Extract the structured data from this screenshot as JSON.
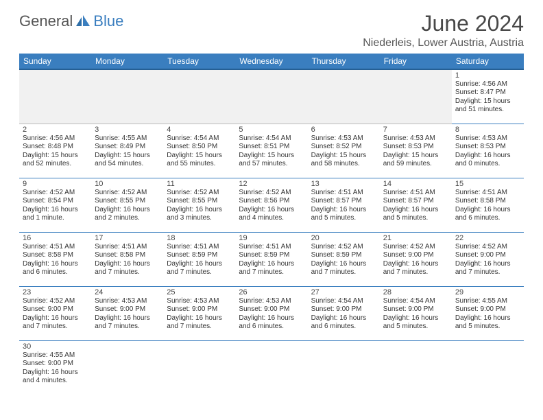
{
  "logo": {
    "general": "General",
    "blue": "Blue"
  },
  "title": "June 2024",
  "location": "Niederleis, Lower Austria, Austria",
  "days_of_week": [
    "Sunday",
    "Monday",
    "Tuesday",
    "Wednesday",
    "Thursday",
    "Friday",
    "Saturday"
  ],
  "colors": {
    "header_bg": "#3a7ebf",
    "header_border": "#255f94",
    "cell_border": "#3a7ebf",
    "blank_bg": "#f1f1f1"
  },
  "weeks": [
    [
      {
        "blank": true
      },
      {
        "blank": true
      },
      {
        "blank": true
      },
      {
        "blank": true
      },
      {
        "blank": true
      },
      {
        "blank": true
      },
      {
        "day": "1",
        "sunrise": "Sunrise: 4:56 AM",
        "sunset": "Sunset: 8:47 PM",
        "daylight1": "Daylight: 15 hours",
        "daylight2": "and 51 minutes."
      }
    ],
    [
      {
        "day": "2",
        "sunrise": "Sunrise: 4:56 AM",
        "sunset": "Sunset: 8:48 PM",
        "daylight1": "Daylight: 15 hours",
        "daylight2": "and 52 minutes."
      },
      {
        "day": "3",
        "sunrise": "Sunrise: 4:55 AM",
        "sunset": "Sunset: 8:49 PM",
        "daylight1": "Daylight: 15 hours",
        "daylight2": "and 54 minutes."
      },
      {
        "day": "4",
        "sunrise": "Sunrise: 4:54 AM",
        "sunset": "Sunset: 8:50 PM",
        "daylight1": "Daylight: 15 hours",
        "daylight2": "and 55 minutes."
      },
      {
        "day": "5",
        "sunrise": "Sunrise: 4:54 AM",
        "sunset": "Sunset: 8:51 PM",
        "daylight1": "Daylight: 15 hours",
        "daylight2": "and 57 minutes."
      },
      {
        "day": "6",
        "sunrise": "Sunrise: 4:53 AM",
        "sunset": "Sunset: 8:52 PM",
        "daylight1": "Daylight: 15 hours",
        "daylight2": "and 58 minutes."
      },
      {
        "day": "7",
        "sunrise": "Sunrise: 4:53 AM",
        "sunset": "Sunset: 8:53 PM",
        "daylight1": "Daylight: 15 hours",
        "daylight2": "and 59 minutes."
      },
      {
        "day": "8",
        "sunrise": "Sunrise: 4:53 AM",
        "sunset": "Sunset: 8:53 PM",
        "daylight1": "Daylight: 16 hours",
        "daylight2": "and 0 minutes."
      }
    ],
    [
      {
        "day": "9",
        "sunrise": "Sunrise: 4:52 AM",
        "sunset": "Sunset: 8:54 PM",
        "daylight1": "Daylight: 16 hours",
        "daylight2": "and 1 minute."
      },
      {
        "day": "10",
        "sunrise": "Sunrise: 4:52 AM",
        "sunset": "Sunset: 8:55 PM",
        "daylight1": "Daylight: 16 hours",
        "daylight2": "and 2 minutes."
      },
      {
        "day": "11",
        "sunrise": "Sunrise: 4:52 AM",
        "sunset": "Sunset: 8:55 PM",
        "daylight1": "Daylight: 16 hours",
        "daylight2": "and 3 minutes."
      },
      {
        "day": "12",
        "sunrise": "Sunrise: 4:52 AM",
        "sunset": "Sunset: 8:56 PM",
        "daylight1": "Daylight: 16 hours",
        "daylight2": "and 4 minutes."
      },
      {
        "day": "13",
        "sunrise": "Sunrise: 4:51 AM",
        "sunset": "Sunset: 8:57 PM",
        "daylight1": "Daylight: 16 hours",
        "daylight2": "and 5 minutes."
      },
      {
        "day": "14",
        "sunrise": "Sunrise: 4:51 AM",
        "sunset": "Sunset: 8:57 PM",
        "daylight1": "Daylight: 16 hours",
        "daylight2": "and 5 minutes."
      },
      {
        "day": "15",
        "sunrise": "Sunrise: 4:51 AM",
        "sunset": "Sunset: 8:58 PM",
        "daylight1": "Daylight: 16 hours",
        "daylight2": "and 6 minutes."
      }
    ],
    [
      {
        "day": "16",
        "sunrise": "Sunrise: 4:51 AM",
        "sunset": "Sunset: 8:58 PM",
        "daylight1": "Daylight: 16 hours",
        "daylight2": "and 6 minutes."
      },
      {
        "day": "17",
        "sunrise": "Sunrise: 4:51 AM",
        "sunset": "Sunset: 8:58 PM",
        "daylight1": "Daylight: 16 hours",
        "daylight2": "and 7 minutes."
      },
      {
        "day": "18",
        "sunrise": "Sunrise: 4:51 AM",
        "sunset": "Sunset: 8:59 PM",
        "daylight1": "Daylight: 16 hours",
        "daylight2": "and 7 minutes."
      },
      {
        "day": "19",
        "sunrise": "Sunrise: 4:51 AM",
        "sunset": "Sunset: 8:59 PM",
        "daylight1": "Daylight: 16 hours",
        "daylight2": "and 7 minutes."
      },
      {
        "day": "20",
        "sunrise": "Sunrise: 4:52 AM",
        "sunset": "Sunset: 8:59 PM",
        "daylight1": "Daylight: 16 hours",
        "daylight2": "and 7 minutes."
      },
      {
        "day": "21",
        "sunrise": "Sunrise: 4:52 AM",
        "sunset": "Sunset: 9:00 PM",
        "daylight1": "Daylight: 16 hours",
        "daylight2": "and 7 minutes."
      },
      {
        "day": "22",
        "sunrise": "Sunrise: 4:52 AM",
        "sunset": "Sunset: 9:00 PM",
        "daylight1": "Daylight: 16 hours",
        "daylight2": "and 7 minutes."
      }
    ],
    [
      {
        "day": "23",
        "sunrise": "Sunrise: 4:52 AM",
        "sunset": "Sunset: 9:00 PM",
        "daylight1": "Daylight: 16 hours",
        "daylight2": "and 7 minutes."
      },
      {
        "day": "24",
        "sunrise": "Sunrise: 4:53 AM",
        "sunset": "Sunset: 9:00 PM",
        "daylight1": "Daylight: 16 hours",
        "daylight2": "and 7 minutes."
      },
      {
        "day": "25",
        "sunrise": "Sunrise: 4:53 AM",
        "sunset": "Sunset: 9:00 PM",
        "daylight1": "Daylight: 16 hours",
        "daylight2": "and 7 minutes."
      },
      {
        "day": "26",
        "sunrise": "Sunrise: 4:53 AM",
        "sunset": "Sunset: 9:00 PM",
        "daylight1": "Daylight: 16 hours",
        "daylight2": "and 6 minutes."
      },
      {
        "day": "27",
        "sunrise": "Sunrise: 4:54 AM",
        "sunset": "Sunset: 9:00 PM",
        "daylight1": "Daylight: 16 hours",
        "daylight2": "and 6 minutes."
      },
      {
        "day": "28",
        "sunrise": "Sunrise: 4:54 AM",
        "sunset": "Sunset: 9:00 PM",
        "daylight1": "Daylight: 16 hours",
        "daylight2": "and 5 minutes."
      },
      {
        "day": "29",
        "sunrise": "Sunrise: 4:55 AM",
        "sunset": "Sunset: 9:00 PM",
        "daylight1": "Daylight: 16 hours",
        "daylight2": "and 5 minutes."
      }
    ],
    [
      {
        "day": "30",
        "sunrise": "Sunrise: 4:55 AM",
        "sunset": "Sunset: 9:00 PM",
        "daylight1": "Daylight: 16 hours",
        "daylight2": "and 4 minutes."
      },
      {
        "blank": true,
        "trailing": true
      },
      {
        "blank": true,
        "trailing": true
      },
      {
        "blank": true,
        "trailing": true
      },
      {
        "blank": true,
        "trailing": true
      },
      {
        "blank": true,
        "trailing": true
      },
      {
        "blank": true,
        "trailing": true
      }
    ]
  ]
}
